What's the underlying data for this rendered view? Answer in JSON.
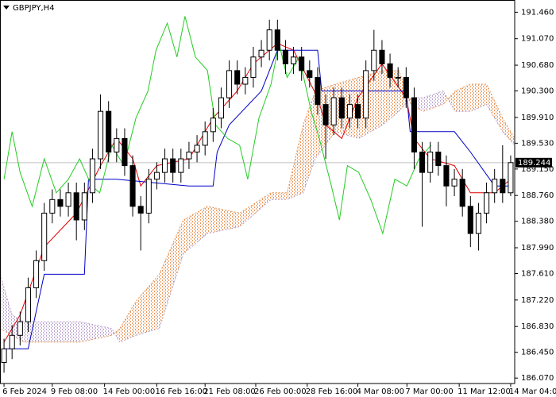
{
  "chart_data": {
    "type": "candlestick",
    "title": "GBPJPY,H4",
    "open": [
      186.3,
      186.5,
      186.7,
      186.9,
      187.4,
      187.8,
      188.5,
      188.7,
      188.6,
      188.8,
      188.4,
      188.8,
      189.3,
      190.0,
      189.4,
      189.6,
      189.2,
      188.6,
      188.5,
      189.0,
      189.1,
      189.3,
      189.1,
      189.3,
      189.4,
      189.5,
      189.7,
      189.9,
      190.2,
      190.6,
      190.4,
      190.5,
      190.8,
      190.9,
      191.2,
      190.9,
      190.7,
      190.8,
      190.6,
      190.5,
      190.1,
      189.8,
      190.2,
      189.9,
      190.1,
      189.9,
      190.6,
      190.9,
      190.7,
      190.5,
      190.5,
      190.2,
      189.4,
      189.1,
      189.4,
      189.2,
      188.9,
      189.0,
      188.6,
      188.2,
      188.5,
      188.8,
      189.0,
      188.8
    ],
    "high": [
      186.65,
      186.85,
      187.05,
      187.55,
      187.95,
      188.65,
      188.85,
      188.85,
      188.95,
      188.95,
      188.95,
      189.45,
      190.25,
      190.15,
      189.75,
      189.75,
      189.35,
      188.75,
      189.15,
      189.25,
      189.45,
      189.45,
      189.45,
      189.55,
      189.65,
      189.85,
      190.05,
      190.35,
      190.75,
      190.75,
      190.65,
      190.95,
      191.05,
      191.35,
      191.35,
      191.05,
      190.95,
      190.95,
      190.75,
      190.65,
      190.25,
      190.35,
      190.35,
      190.25,
      190.25,
      190.75,
      191.2,
      191.05,
      190.85,
      190.65,
      190.65,
      190.35,
      189.55,
      189.55,
      189.55,
      189.35,
      189.15,
      189.15,
      188.75,
      188.65,
      188.95,
      189.15,
      189.5,
      189.35
    ],
    "low": [
      186.15,
      186.35,
      186.55,
      186.75,
      187.25,
      187.65,
      188.35,
      188.45,
      188.45,
      188.1,
      188.25,
      188.65,
      189.15,
      189.25,
      189.25,
      189.05,
      188.45,
      187.95,
      188.35,
      188.85,
      188.95,
      188.95,
      188.95,
      189.15,
      189.25,
      189.35,
      189.55,
      189.75,
      190.05,
      190.25,
      190.25,
      190.35,
      190.65,
      190.75,
      190.75,
      190.55,
      190.55,
      190.45,
      190.35,
      189.95,
      189.3,
      189.65,
      189.75,
      189.75,
      189.75,
      189.75,
      190.45,
      190.55,
      190.35,
      190.35,
      190.05,
      189.15,
      188.3,
      188.95,
      189.05,
      188.6,
      188.75,
      188.45,
      188.0,
      187.95,
      188.35,
      188.65,
      188.65,
      188.75
    ],
    "close": [
      186.5,
      186.7,
      186.9,
      187.4,
      187.8,
      188.5,
      188.7,
      188.6,
      188.8,
      188.4,
      188.8,
      189.3,
      190.0,
      189.4,
      189.6,
      189.2,
      188.6,
      188.5,
      189.0,
      189.1,
      189.3,
      189.1,
      189.3,
      189.4,
      189.5,
      189.7,
      189.9,
      190.2,
      190.6,
      190.4,
      190.5,
      190.8,
      190.9,
      191.2,
      190.9,
      190.7,
      190.8,
      190.6,
      190.5,
      190.1,
      189.8,
      190.2,
      189.9,
      190.1,
      189.9,
      190.6,
      190.9,
      190.7,
      190.5,
      190.5,
      190.2,
      189.4,
      189.1,
      189.4,
      189.2,
      188.9,
      189.0,
      188.6,
      188.2,
      188.5,
      188.8,
      189.0,
      188.8,
      189.244
    ],
    "up_color": "#ffffff",
    "down_color": "#000000",
    "last_price": 189.244,
    "last_price_color": "#c0c0c0",
    "xlim": [
      -0.5,
      63.5
    ],
    "xticks": [
      {
        "value": 0,
        "label": "6 Feb 2024"
      },
      {
        "value": 6,
        "label": "9 Feb 08:00"
      },
      {
        "value": 12.5,
        "label": "14 Feb 00:00"
      },
      {
        "value": 19,
        "label": "16 Feb 16:00"
      },
      {
        "value": 25,
        "label": "21 Feb 08:00"
      },
      {
        "value": 31.3,
        "label": "26 Feb 00:00"
      },
      {
        "value": 37.7,
        "label": "28 Feb 16:00"
      },
      {
        "value": 44,
        "label": "4 Mar 08:00"
      },
      {
        "value": 50.1,
        "label": "7 Mar 00:00"
      },
      {
        "value": 56.6,
        "label": "11 Mar 12:00"
      },
      {
        "value": 63,
        "label": "14 Mar 04:00"
      }
    ],
    "ylim": [
      185.99,
      191.64
    ],
    "yticks": [
      {
        "value": 186.07,
        "label": "186.070"
      },
      {
        "value": 186.45,
        "label": "186.450"
      },
      {
        "value": 186.83,
        "label": "186.830"
      },
      {
        "value": 187.22,
        "label": "187.220"
      },
      {
        "value": 187.61,
        "label": "187.610"
      },
      {
        "value": 187.99,
        "label": "187.990"
      },
      {
        "value": 188.38,
        "label": "188.380"
      },
      {
        "value": 188.76,
        "label": "188.760"
      },
      {
        "value": 189.15,
        "label": "189.150"
      },
      {
        "value": 189.53,
        "label": "189.530"
      },
      {
        "value": 189.91,
        "label": "189.910"
      },
      {
        "value": 190.3,
        "label": "190.300"
      },
      {
        "value": 190.68,
        "label": "190.680"
      },
      {
        "value": 191.07,
        "label": "191.070"
      },
      {
        "value": 191.46,
        "label": "191.460"
      }
    ],
    "series": [
      {
        "color": "#e00000",
        "x": [
          0,
          2,
          5,
          9,
          12,
          14,
          16,
          17,
          19,
          23,
          26,
          29,
          31,
          34,
          36,
          39,
          40,
          42,
          44,
          47,
          50,
          51,
          53,
          56,
          58,
          61,
          63
        ],
        "values": [
          186.6,
          187.0,
          188.0,
          188.5,
          189.2,
          189.6,
          189.3,
          188.9,
          189.2,
          189.3,
          189.9,
          190.3,
          190.7,
          191.0,
          190.9,
          190.2,
          189.8,
          189.6,
          190.2,
          190.7,
          190.2,
          189.6,
          189.3,
          189.2,
          188.8,
          188.8,
          189.0
        ]
      },
      {
        "color": "#0000c8",
        "x": [
          0,
          3,
          5,
          10,
          10.5,
          14,
          23,
          26,
          26.5,
          28,
          32,
          34,
          39,
          39.5,
          50,
          50.5,
          56,
          58,
          61,
          63
        ],
        "values": [
          186.5,
          186.5,
          187.6,
          187.6,
          189.0,
          189.0,
          188.9,
          188.9,
          189.4,
          189.8,
          190.3,
          190.9,
          190.9,
          190.3,
          190.3,
          189.7,
          189.7,
          189.4,
          188.9,
          188.9
        ]
      },
      {
        "color": "#22cc22",
        "x": [
          0,
          1,
          2,
          3.5,
          5,
          6.5,
          8,
          9.4,
          10.9,
          11.9,
          13.4,
          14.9,
          16.4,
          17.9,
          18.9,
          20.3,
          21.5,
          22.5,
          23.8,
          25.3,
          26.3,
          27.8,
          29.3,
          30.3,
          31.7,
          33.2,
          34.2,
          35.2,
          36.7,
          38.2,
          39.2,
          40.7,
          41.7,
          42.7,
          44.1,
          45.6,
          47.1,
          48.6,
          50.1,
          51.6,
          53.1
        ],
        "values": [
          189.0,
          189.7,
          189.1,
          188.6,
          189.3,
          188.8,
          189.0,
          189.3,
          188.9,
          188.8,
          189.5,
          189.2,
          189.9,
          190.3,
          190.9,
          191.3,
          190.8,
          191.4,
          190.8,
          190.6,
          189.8,
          189.6,
          189.5,
          189.0,
          189.9,
          190.4,
          191.0,
          190.5,
          190.8,
          190.0,
          189.6,
          188.9,
          188.4,
          189.2,
          189.1,
          188.7,
          188.2,
          189.0,
          188.9,
          189.3,
          189.5
        ]
      }
    ],
    "cloud": {
      "span_a": {
        "color": "#e8965a",
        "x": [
          -0.5,
          1,
          2.5,
          5.5,
          9.4,
          13.4,
          14.4,
          16.4,
          19.3,
          22.3,
          25.3,
          29.3,
          33.2,
          35.2,
          37.2,
          38.7,
          41.2,
          44.1,
          47.1,
          49.1,
          50.6,
          52.1,
          54.6,
          56.1,
          58,
          60,
          62,
          63.5
        ],
        "values": [
          186.8,
          186.7,
          186.6,
          186.6,
          186.6,
          186.7,
          186.8,
          187.2,
          187.6,
          188.4,
          188.6,
          188.5,
          188.8,
          188.8,
          189.8,
          190.3,
          190.4,
          190.5,
          190.6,
          190.6,
          190.1,
          190.0,
          190.1,
          190.3,
          190.4,
          190.4,
          189.9,
          189.6
        ]
      },
      "span_b": {
        "color": "#b8a0cc",
        "x": [
          -0.5,
          1,
          2.5,
          5.5,
          9.4,
          13.4,
          14.4,
          16.4,
          19.3,
          22.3,
          25.3,
          29.3,
          33.2,
          35.2,
          37.2,
          38.7,
          41.2,
          44.1,
          47.1,
          49.1,
          50.6,
          52.1,
          54.6,
          56.1,
          58,
          60,
          62,
          63.5
        ],
        "values": [
          187.6,
          187.0,
          186.9,
          186.9,
          186.9,
          186.8,
          186.6,
          186.7,
          186.8,
          187.9,
          188.2,
          188.3,
          188.7,
          188.7,
          188.8,
          189.3,
          189.7,
          189.6,
          189.8,
          190.0,
          190.2,
          190.2,
          190.3,
          190.0,
          190.0,
          190.1,
          189.7,
          189.5
        ]
      }
    }
  }
}
